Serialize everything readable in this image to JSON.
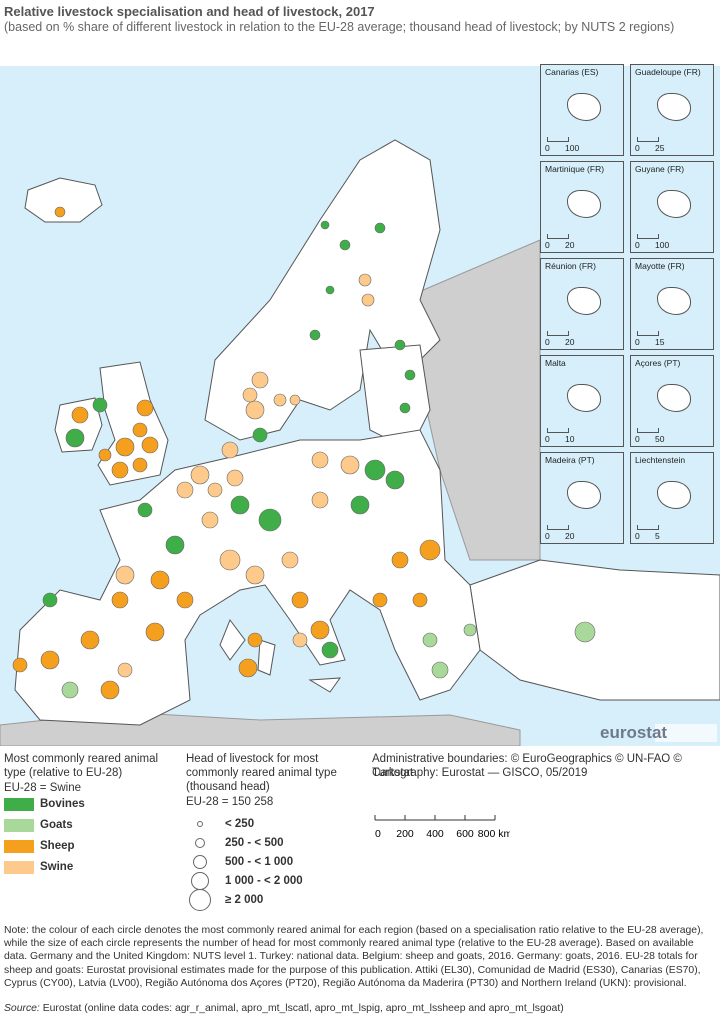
{
  "header": {
    "title": "Relative livestock specialisation and head of livestock, 2017",
    "subtitle": "(based on % share of different livestock in relation to the EU-28 average; thousand head of livestock; by NUTS 2 regions)"
  },
  "insets": [
    {
      "label": "Canarias (ES)",
      "scale": [
        0,
        100
      ]
    },
    {
      "label": "Guadeloupe (FR)",
      "scale": [
        0,
        25
      ]
    },
    {
      "label": "Martinique (FR)",
      "scale": [
        0,
        20
      ]
    },
    {
      "label": "Guyane (FR)",
      "scale": [
        0,
        100
      ]
    },
    {
      "label": "Réunion (FR)",
      "scale": [
        0,
        20
      ]
    },
    {
      "label": "Mayotte (FR)",
      "scale": [
        0,
        15
      ]
    },
    {
      "label": "Malta",
      "scale": [
        0,
        10
      ]
    },
    {
      "label": "Açores (PT)",
      "scale": [
        0,
        50
      ]
    },
    {
      "label": "Madeira (PT)",
      "scale": [
        0,
        20
      ]
    },
    {
      "label": "Liechtenstein",
      "scale": [
        0,
        5
      ]
    }
  ],
  "brand": "eurostat",
  "legend_type": {
    "title": "Most commonly reared animal type (relative to EU-28)",
    "base": "EU-28 = Swine",
    "items": [
      {
        "name": "Bovines",
        "color": "#3fae49"
      },
      {
        "name": "Goats",
        "color": "#a8d89a"
      },
      {
        "name": "Sheep",
        "color": "#f59f1f"
      },
      {
        "name": "Swine",
        "color": "#fdca8b"
      }
    ]
  },
  "legend_size": {
    "title": "Head of livestock for most commonly reared animal type (thousand head)",
    "base": "EU-28 = 150 258",
    "items": [
      "< 250",
      "250 - < 500",
      "500 - < 1 000",
      "1 000 - < 2 000",
      "≥ 2 000"
    ]
  },
  "credits": [
    "Administrative boundaries: © EuroGeographics © UN-FAO © Turkstat",
    "Cartography: Eurostat — GISCO, 05/2019"
  ],
  "scalebar": [
    "0",
    "200",
    "400",
    "600",
    "800 km"
  ],
  "note": "Note: the colour of each circle denotes the most commonly reared animal for each region (based on a specialisation ratio relative to the EU-28 average), while the size of each circle represents the number of head for most commonly reared animal type (relative to the EU-28 average). Based on available data. Germany and the United Kingdom: NUTS level 1. Turkey: national data. Belgium: sheep and goats, 2016. Germany: goats, 2016. EU-28 totals for sheep and goats: Eurostat provisional estimates made for the purpose of this publication. Attiki (EL30), Comunidad de Madrid (ES30), Canarias (ES70), Cyprus (CY00), Latvia (LV00), Região Autónoma dos Açores (PT20), Região Autónoma da Maderira (PT30) and Northern Ireland (UKN): provisional.",
  "source": {
    "label": "Source:",
    "text": "Eurostat (online data codes: agr_r_animal, apro_mt_lscatl, apro_mt_lspig, apro_mt_lssheep and apro_mt_lsgoat)"
  }
}
